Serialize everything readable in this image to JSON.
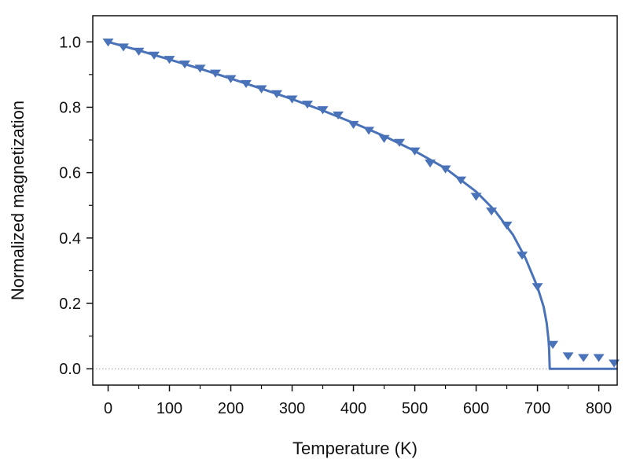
{
  "chart_data": {
    "type": "scatter",
    "xlabel": "Temperature (K)",
    "ylabel": "Normalized magnetization",
    "xlim": [
      -25,
      830
    ],
    "ylim": [
      -0.05,
      1.08
    ],
    "xticks": [
      0,
      100,
      200,
      300,
      400,
      500,
      600,
      700,
      800
    ],
    "xtick_labels": [
      "0",
      "100",
      "200",
      "300",
      "400",
      "500",
      "600",
      "700",
      "800"
    ],
    "yticks": [
      0.0,
      0.2,
      0.4,
      0.6,
      0.8,
      1.0
    ],
    "ytick_labels": [
      "0.0",
      "0.2",
      "0.4",
      "0.6",
      "0.8",
      "1.0"
    ],
    "grid": false,
    "reference_line": {
      "y": 0.0,
      "style": "dotted"
    },
    "color": "#4a72b8",
    "series": [
      {
        "kind": "markers",
        "marker": "down-triangle",
        "x": [
          0,
          25,
          50,
          75,
          100,
          125,
          150,
          175,
          200,
          225,
          250,
          275,
          300,
          325,
          350,
          375,
          400,
          425,
          450,
          475,
          500,
          525,
          550,
          575,
          600,
          625,
          650,
          675,
          700,
          725,
          750,
          775,
          800,
          825
        ],
        "y": [
          1.0,
          0.985,
          0.972,
          0.96,
          0.947,
          0.933,
          0.92,
          0.905,
          0.888,
          0.873,
          0.857,
          0.842,
          0.826,
          0.81,
          0.793,
          0.777,
          0.748,
          0.73,
          0.705,
          0.693,
          0.667,
          0.63,
          0.612,
          0.578,
          0.528,
          0.483,
          0.44,
          0.348,
          0.252,
          0.075,
          0.04,
          0.035,
          0.035,
          0.018
        ]
      },
      {
        "kind": "line",
        "x": [
          0,
          50,
          100,
          150,
          200,
          250,
          300,
          350,
          400,
          450,
          500,
          550,
          600,
          630,
          660,
          680,
          700,
          710,
          715,
          718,
          719,
          720,
          720,
          830
        ],
        "y": [
          1.0,
          0.974,
          0.946,
          0.918,
          0.888,
          0.857,
          0.825,
          0.79,
          0.752,
          0.712,
          0.666,
          0.613,
          0.542,
          0.485,
          0.41,
          0.34,
          0.25,
          0.19,
          0.14,
          0.09,
          0.06,
          0.0,
          0.0,
          0.0
        ]
      }
    ]
  }
}
